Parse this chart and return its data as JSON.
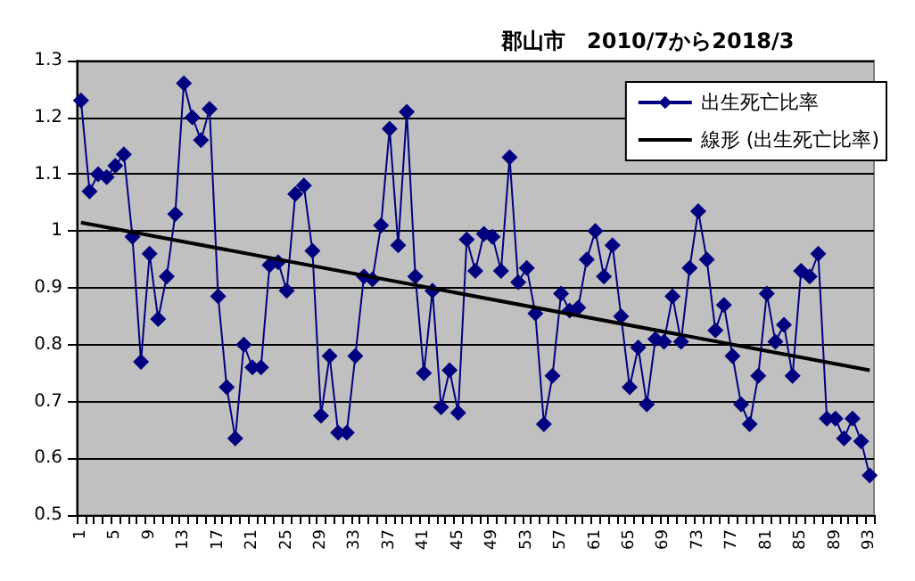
{
  "chart_data": {
    "type": "line",
    "title": "郡山市　2010/7から2018/3",
    "categories": [
      "1",
      null,
      null,
      null,
      "5",
      null,
      null,
      null,
      "9",
      null,
      null,
      null,
      "13",
      null,
      null,
      null,
      "17",
      null,
      null,
      null,
      "21",
      null,
      null,
      null,
      "25",
      null,
      null,
      null,
      "29",
      null,
      null,
      null,
      "33",
      null,
      null,
      null,
      "37",
      null,
      null,
      null,
      "41",
      null,
      null,
      null,
      "45",
      null,
      null,
      null,
      "49",
      null,
      null,
      null,
      "53",
      null,
      null,
      null,
      "57",
      null,
      null,
      null,
      "61",
      null,
      null,
      null,
      "65",
      null,
      null,
      null,
      "69",
      null,
      null,
      null,
      "73",
      null,
      null,
      null,
      "77",
      null,
      null,
      null,
      "81",
      null,
      null,
      null,
      "85",
      null,
      null,
      null,
      "89",
      null,
      null,
      null,
      "93"
    ],
    "series": [
      {
        "name": "出生死亡比率",
        "color": "#000080",
        "marker": "diamond",
        "values": [
          1.23,
          1.07,
          1.1,
          1.095,
          1.115,
          1.135,
          0.99,
          0.77,
          0.96,
          0.845,
          0.92,
          1.03,
          1.26,
          1.2,
          1.16,
          1.215,
          0.885,
          0.725,
          0.635,
          0.8,
          0.76,
          0.76,
          0.94,
          0.945,
          0.895,
          1.065,
          1.08,
          0.965,
          0.675,
          0.78,
          0.645,
          0.645,
          0.78,
          0.92,
          0.915,
          1.01,
          1.18,
          0.975,
          1.21,
          0.92,
          0.75,
          0.895,
          0.69,
          0.755,
          0.68,
          0.985,
          0.93,
          0.995,
          0.99,
          0.93,
          1.13,
          0.91,
          0.935,
          0.855,
          0.66,
          0.745,
          0.89,
          0.86,
          0.865,
          0.95,
          1.0,
          0.92,
          0.975,
          0.85,
          0.725,
          0.795,
          0.695,
          0.81,
          0.805,
          0.885,
          0.805,
          0.935,
          1.035,
          0.95,
          0.825,
          0.87,
          0.78,
          0.695,
          0.66,
          0.745,
          0.89,
          0.805,
          0.835,
          0.745,
          0.93,
          0.92,
          0.96,
          0.67,
          0.67,
          0.635,
          0.67,
          0.63,
          0.57
        ]
      },
      {
        "name": "線形 (出生死亡比率)",
        "color": "#000000",
        "marker": "none",
        "line_style": "solid",
        "x": [
          "1",
          "93"
        ],
        "values": [
          1.015,
          0.755
        ]
      }
    ],
    "ylim": [
      0.5,
      1.3
    ],
    "yticks": [
      0.5,
      0.6,
      0.7,
      0.8,
      0.9,
      1,
      1.1,
      1.2,
      1.3
    ],
    "grid": "y",
    "legend": "top right"
  }
}
